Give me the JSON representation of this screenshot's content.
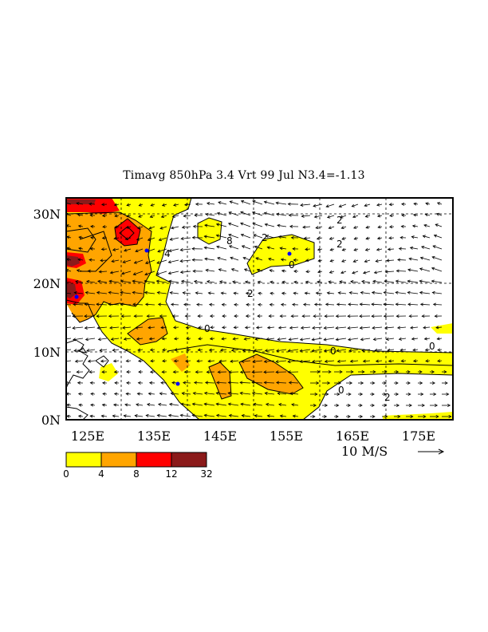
{
  "title": "Timavg 850hPa 3.4 Vrt 99 Jul N3.4=-1.13",
  "map": {
    "lat_ticks": [
      "30N",
      "20N",
      "10N",
      "0N"
    ],
    "lon_ticks": [
      "125E",
      "135E",
      "145E",
      "155E",
      "165E",
      "175E"
    ],
    "lat_range": [
      0,
      32
    ],
    "lon_range": [
      120,
      178
    ],
    "contour_labels": [
      "0",
      "0",
      "0",
      "0",
      "0",
      "2",
      "2",
      "2",
      "2",
      "2",
      "4",
      "8"
    ]
  },
  "vector_reference": {
    "label": "10 M/S"
  },
  "colorbar": {
    "colors": [
      "#ffff00",
      "#ffa500",
      "#ff0000",
      "#8b1a1a"
    ],
    "labels": [
      "0",
      "4",
      "8",
      "12",
      "32"
    ]
  }
}
